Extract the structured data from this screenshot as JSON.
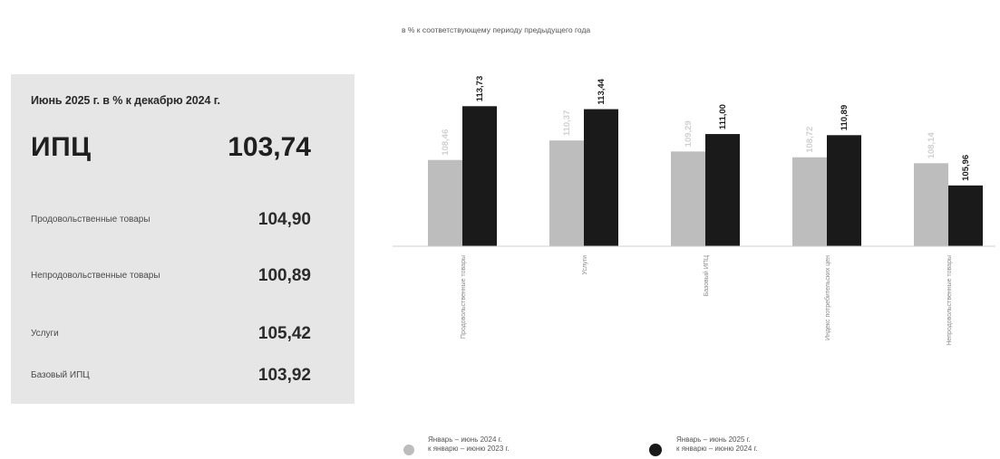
{
  "summary": {
    "title": "Июнь 2025 г. в % к декабрю 2024 г.",
    "cpi_label": "ИПЦ",
    "cpi_value": "103,74",
    "rows": [
      {
        "label": "Продовольственные товары",
        "value": "104,90"
      },
      {
        "label": "Непродовольственные товары",
        "value": "100,89"
      },
      {
        "label": "Услуги",
        "value": "105,42"
      },
      {
        "label": "Базовый ИПЦ",
        "value": "103,92"
      }
    ]
  },
  "chart_data": {
    "type": "bar",
    "subtitle": "в % к соответствующему периоду предыдущего года",
    "categories": [
      "Продовольственные товары",
      "Услуги",
      "Базовый ИПЦ",
      "Индекс потребительских цен",
      "Непродовольственные товары"
    ],
    "ylim": [
      100,
      115
    ],
    "series": [
      {
        "name": "Январь – июнь 2024 г. к январю – июню 2023 г.",
        "color": "#bdbdbd",
        "values": [
          108.46,
          110.37,
          109.29,
          108.72,
          108.14
        ],
        "labels": [
          "108,46",
          "110,37",
          "109,29",
          "108,72",
          "108,14"
        ]
      },
      {
        "name": "Январь – июнь 2025 г. к январю – июню 2024 г.",
        "color": "#1a1a1a",
        "values": [
          113.73,
          113.44,
          111.0,
          110.89,
          105.96
        ],
        "labels": [
          "113,73",
          "113,44",
          "111,00",
          "110,89",
          "105,96"
        ]
      }
    ]
  }
}
